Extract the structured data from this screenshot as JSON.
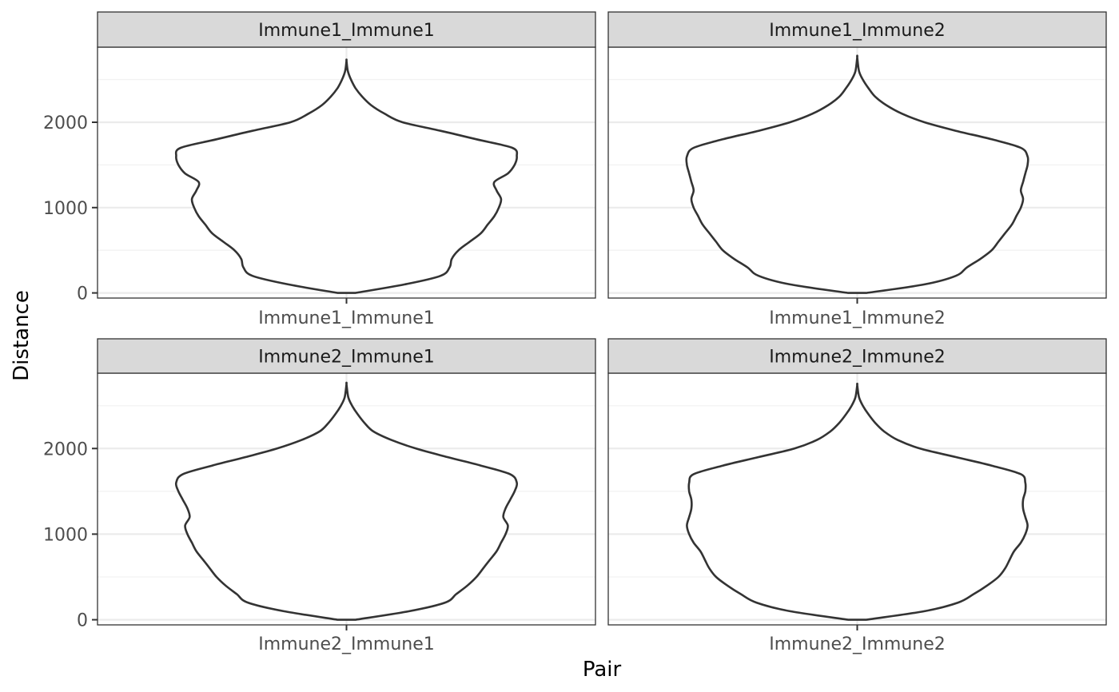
{
  "chart_data": {
    "type": "violin",
    "xlabel": "Pair",
    "ylabel": "Distance",
    "ylim": [
      -60,
      2880
    ],
    "y_ticks": [
      0,
      1000,
      2000
    ],
    "grid": true,
    "facets": [
      {
        "strip": "Immune1_Immune1",
        "category": "Immune1_Immune1",
        "density_profile": [
          {
            "y": 0,
            "half_width": 0.04
          },
          {
            "y": 100,
            "half_width": 0.26
          },
          {
            "y": 200,
            "half_width": 0.42
          },
          {
            "y": 300,
            "half_width": 0.46
          },
          {
            "y": 400,
            "half_width": 0.47
          },
          {
            "y": 500,
            "half_width": 0.5
          },
          {
            "y": 600,
            "half_width": 0.55
          },
          {
            "y": 700,
            "half_width": 0.6
          },
          {
            "y": 800,
            "half_width": 0.63
          },
          {
            "y": 900,
            "half_width": 0.66
          },
          {
            "y": 1000,
            "half_width": 0.68
          },
          {
            "y": 1100,
            "half_width": 0.69
          },
          {
            "y": 1200,
            "half_width": 0.67
          },
          {
            "y": 1300,
            "half_width": 0.66
          },
          {
            "y": 1400,
            "half_width": 0.72
          },
          {
            "y": 1500,
            "half_width": 0.75
          },
          {
            "y": 1600,
            "half_width": 0.76
          },
          {
            "y": 1700,
            "half_width": 0.74
          },
          {
            "y": 1800,
            "half_width": 0.58
          },
          {
            "y": 1900,
            "half_width": 0.42
          },
          {
            "y": 2000,
            "half_width": 0.25
          },
          {
            "y": 2100,
            "half_width": 0.17
          },
          {
            "y": 2200,
            "half_width": 0.11
          },
          {
            "y": 2300,
            "half_width": 0.07
          },
          {
            "y": 2400,
            "half_width": 0.04
          },
          {
            "y": 2500,
            "half_width": 0.02
          },
          {
            "y": 2600,
            "half_width": 0.006
          },
          {
            "y": 2720,
            "half_width": 0
          }
        ]
      },
      {
        "strip": "Immune1_Immune2",
        "category": "Immune1_Immune2",
        "density_profile": [
          {
            "y": 0,
            "half_width": 0.04
          },
          {
            "y": 100,
            "half_width": 0.3
          },
          {
            "y": 200,
            "half_width": 0.44
          },
          {
            "y": 300,
            "half_width": 0.49
          },
          {
            "y": 400,
            "half_width": 0.55
          },
          {
            "y": 500,
            "half_width": 0.6
          },
          {
            "y": 600,
            "half_width": 0.63
          },
          {
            "y": 700,
            "half_width": 0.66
          },
          {
            "y": 800,
            "half_width": 0.69
          },
          {
            "y": 900,
            "half_width": 0.71
          },
          {
            "y": 1000,
            "half_width": 0.73
          },
          {
            "y": 1100,
            "half_width": 0.74
          },
          {
            "y": 1200,
            "half_width": 0.73
          },
          {
            "y": 1300,
            "half_width": 0.74
          },
          {
            "y": 1400,
            "half_width": 0.75
          },
          {
            "y": 1500,
            "half_width": 0.76
          },
          {
            "y": 1600,
            "half_width": 0.76
          },
          {
            "y": 1700,
            "half_width": 0.73
          },
          {
            "y": 1800,
            "half_width": 0.6
          },
          {
            "y": 1900,
            "half_width": 0.44
          },
          {
            "y": 2000,
            "half_width": 0.3
          },
          {
            "y": 2100,
            "half_width": 0.2
          },
          {
            "y": 2200,
            "half_width": 0.13
          },
          {
            "y": 2300,
            "half_width": 0.08
          },
          {
            "y": 2400,
            "half_width": 0.05
          },
          {
            "y": 2500,
            "half_width": 0.025
          },
          {
            "y": 2600,
            "half_width": 0.008
          },
          {
            "y": 2760,
            "half_width": 0
          }
        ]
      },
      {
        "strip": "Immune2_Immune1",
        "category": "Immune2_Immune1",
        "density_profile": [
          {
            "y": 0,
            "half_width": 0.04
          },
          {
            "y": 100,
            "half_width": 0.28
          },
          {
            "y": 200,
            "half_width": 0.44
          },
          {
            "y": 300,
            "half_width": 0.49
          },
          {
            "y": 400,
            "half_width": 0.54
          },
          {
            "y": 500,
            "half_width": 0.58
          },
          {
            "y": 600,
            "half_width": 0.61
          },
          {
            "y": 700,
            "half_width": 0.64
          },
          {
            "y": 800,
            "half_width": 0.67
          },
          {
            "y": 900,
            "half_width": 0.69
          },
          {
            "y": 1000,
            "half_width": 0.71
          },
          {
            "y": 1100,
            "half_width": 0.72
          },
          {
            "y": 1200,
            "half_width": 0.7
          },
          {
            "y": 1300,
            "half_width": 0.71
          },
          {
            "y": 1400,
            "half_width": 0.73
          },
          {
            "y": 1500,
            "half_width": 0.75
          },
          {
            "y": 1600,
            "half_width": 0.76
          },
          {
            "y": 1700,
            "half_width": 0.73
          },
          {
            "y": 1800,
            "half_width": 0.6
          },
          {
            "y": 1900,
            "half_width": 0.45
          },
          {
            "y": 2000,
            "half_width": 0.31
          },
          {
            "y": 2100,
            "half_width": 0.2
          },
          {
            "y": 2200,
            "half_width": 0.12
          },
          {
            "y": 2300,
            "half_width": 0.08
          },
          {
            "y": 2400,
            "half_width": 0.05
          },
          {
            "y": 2500,
            "half_width": 0.025
          },
          {
            "y": 2600,
            "half_width": 0.008
          },
          {
            "y": 2750,
            "half_width": 0
          }
        ]
      },
      {
        "strip": "Immune2_Immune2",
        "category": "Immune2_Immune2",
        "density_profile": [
          {
            "y": 0,
            "half_width": 0.04
          },
          {
            "y": 100,
            "half_width": 0.3
          },
          {
            "y": 200,
            "half_width": 0.45
          },
          {
            "y": 300,
            "half_width": 0.52
          },
          {
            "y": 400,
            "half_width": 0.58
          },
          {
            "y": 500,
            "half_width": 0.63
          },
          {
            "y": 600,
            "half_width": 0.66
          },
          {
            "y": 700,
            "half_width": 0.68
          },
          {
            "y": 800,
            "half_width": 0.7
          },
          {
            "y": 900,
            "half_width": 0.73
          },
          {
            "y": 1000,
            "half_width": 0.75
          },
          {
            "y": 1100,
            "half_width": 0.76
          },
          {
            "y": 1200,
            "half_width": 0.75
          },
          {
            "y": 1300,
            "half_width": 0.74
          },
          {
            "y": 1400,
            "half_width": 0.74
          },
          {
            "y": 1500,
            "half_width": 0.75
          },
          {
            "y": 1600,
            "half_width": 0.75
          },
          {
            "y": 1700,
            "half_width": 0.73
          },
          {
            "y": 1800,
            "half_width": 0.6
          },
          {
            "y": 1900,
            "half_width": 0.44
          },
          {
            "y": 2000,
            "half_width": 0.28
          },
          {
            "y": 2100,
            "half_width": 0.18
          },
          {
            "y": 2200,
            "half_width": 0.12
          },
          {
            "y": 2300,
            "half_width": 0.08
          },
          {
            "y": 2400,
            "half_width": 0.05
          },
          {
            "y": 2500,
            "half_width": 0.025
          },
          {
            "y": 2600,
            "half_width": 0.008
          },
          {
            "y": 2740,
            "half_width": 0
          }
        ]
      }
    ]
  },
  "colors": {
    "background": "#ffffff",
    "strip_fill": "#d9d9d9",
    "panel_border": "#333333",
    "grid_major": "#ebebeb",
    "grid_minor": "#f2f2f2",
    "violin_stroke": "#333333",
    "violin_fill": "#ffffff",
    "tick_text": "#4d4d4d",
    "axis_title": "#000000"
  }
}
